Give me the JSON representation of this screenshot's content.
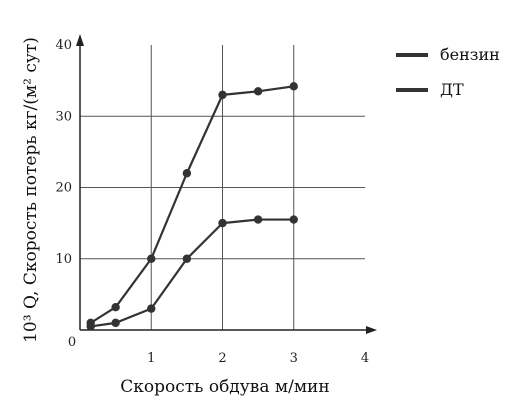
{
  "chart_data": {
    "type": "line",
    "title": "",
    "xlabel": "Скорость обдува м/мин",
    "ylabel": "10³ Q, Скорость потерь кг/(м² сут)",
    "xlim": [
      0,
      4
    ],
    "ylim": [
      0,
      40
    ],
    "xticks": [
      "0",
      "1",
      "2",
      "3",
      "4"
    ],
    "yticks": [
      "10",
      "20",
      "30",
      "40"
    ],
    "grid": true,
    "legend_position": "top-right",
    "series": [
      {
        "name": "бензин",
        "color": "#333333",
        "x": [
          0.15,
          0.5,
          1.0,
          1.5,
          2.0,
          2.5,
          3.0
        ],
        "y": [
          1.0,
          3.2,
          10.0,
          22.0,
          33.0,
          33.5,
          34.2
        ]
      },
      {
        "name": "ДТ",
        "color": "#333333",
        "x": [
          0.15,
          0.5,
          1.0,
          1.5,
          2.0,
          2.5,
          3.0
        ],
        "y": [
          0.5,
          1.0,
          3.0,
          10.0,
          15.0,
          15.5,
          15.5
        ]
      }
    ]
  }
}
